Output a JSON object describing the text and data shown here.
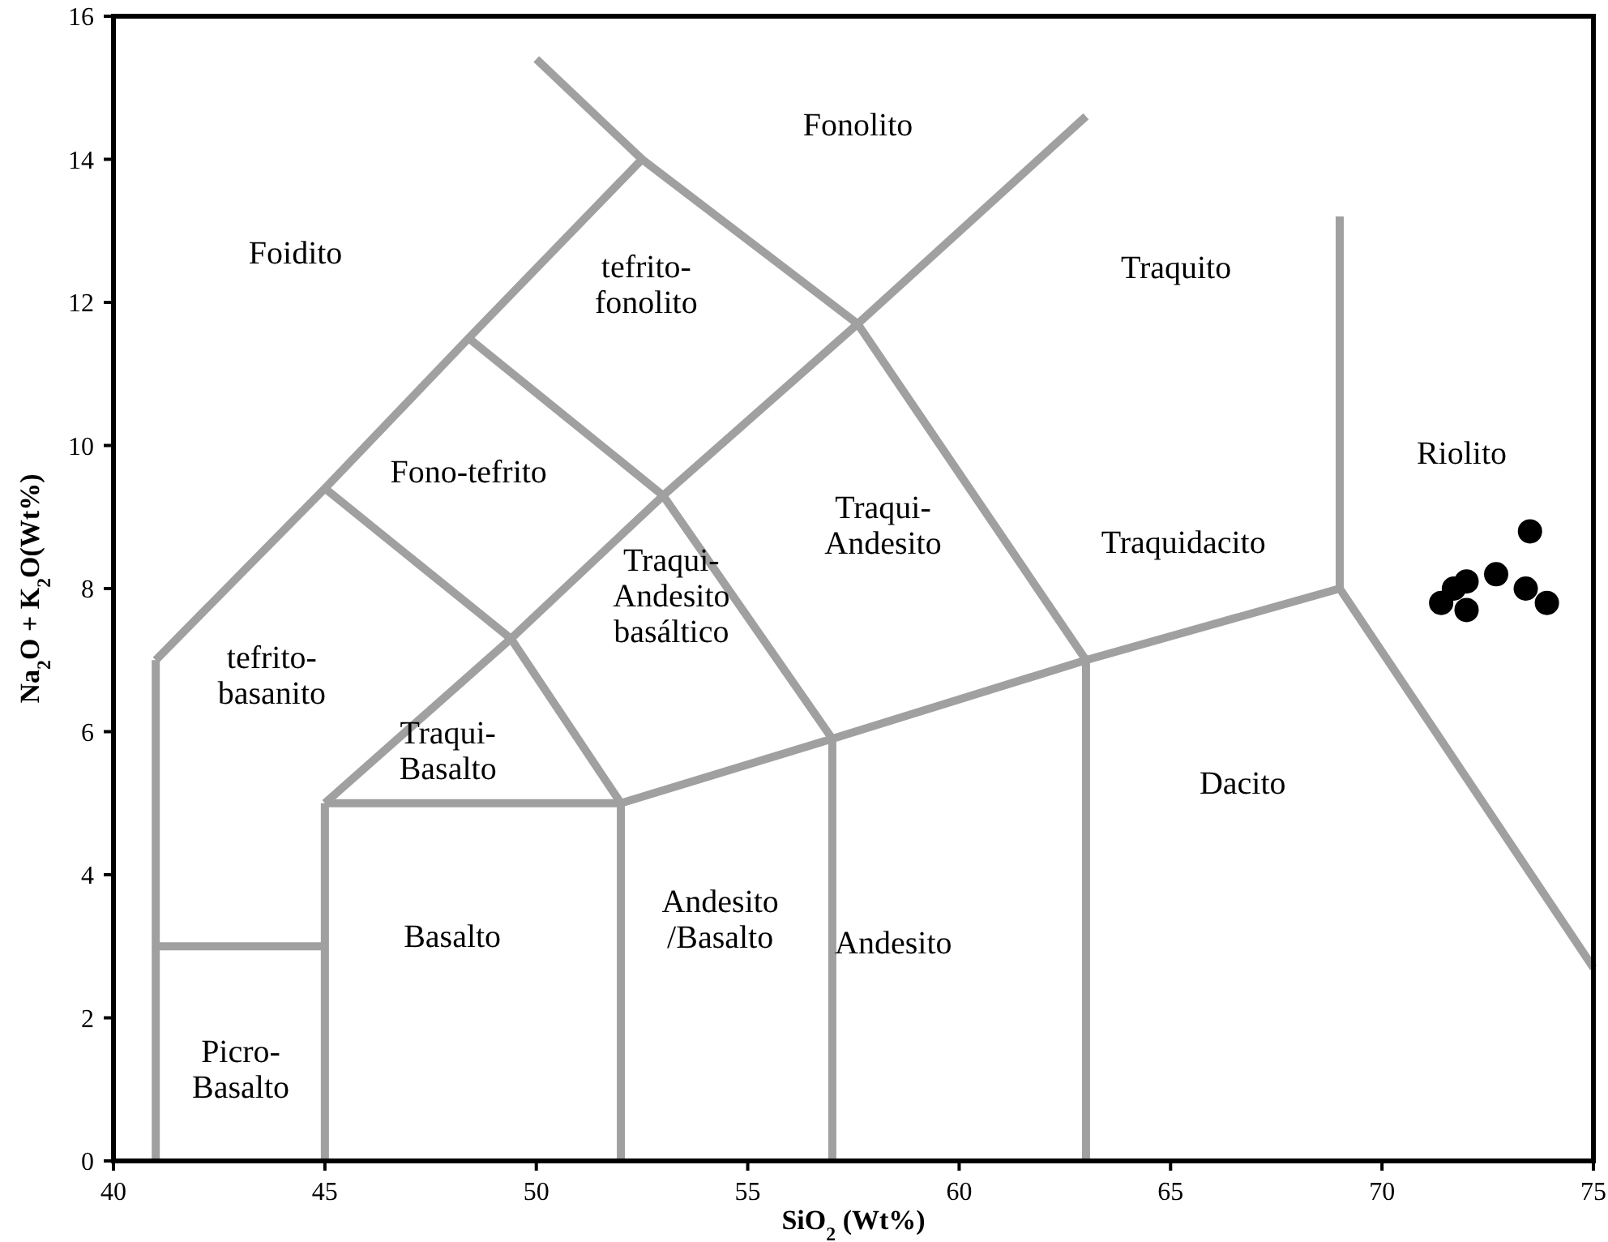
{
  "chart_data": {
    "type": "scatter",
    "xlabel": "SiO$_{2}$ (Wt%)",
    "ylabel": "Na$_{2}$O + K$_{2}$O(Wt%)",
    "xlim": [
      40,
      75
    ],
    "ylim": [
      0,
      16
    ],
    "xticks": [
      40,
      45,
      50,
      55,
      60,
      65,
      70,
      75
    ],
    "yticks": [
      0,
      2,
      4,
      6,
      8,
      10,
      12,
      14,
      16
    ],
    "grid": false,
    "series": [
      {
        "type": "line",
        "color": "#a0a0a0",
        "x": [
          41,
          41
        ],
        "values": [
          0,
          7
        ]
      },
      {
        "type": "line",
        "color": "#a0a0a0",
        "x": [
          41,
          45
        ],
        "values": [
          3,
          3
        ]
      },
      {
        "type": "line",
        "color": "#a0a0a0",
        "x": [
          45,
          45
        ],
        "values": [
          0,
          5
        ]
      },
      {
        "type": "line",
        "color": "#a0a0a0",
        "x": [
          52,
          52
        ],
        "values": [
          0,
          5
        ]
      },
      {
        "type": "line",
        "color": "#a0a0a0",
        "x": [
          41,
          45,
          48.4,
          52.5,
          57.6,
          63
        ],
        "values": [
          7,
          9.4,
          11.5,
          14,
          11.7,
          7
        ]
      },
      {
        "type": "line",
        "color": "#a0a0a0",
        "x": [
          52.5,
          50
        ],
        "values": [
          14,
          15.4
        ]
      },
      {
        "type": "line",
        "color": "#a0a0a0",
        "x": [
          45,
          49.4,
          52
        ],
        "values": [
          9.4,
          7.3,
          5
        ]
      },
      {
        "type": "line",
        "color": "#a0a0a0",
        "x": [
          45,
          49.4,
          53,
          57.6,
          63
        ],
        "values": [
          5,
          7.3,
          9.3,
          11.7,
          14.6
        ]
      },
      {
        "type": "line",
        "color": "#a0a0a0",
        "x": [
          48.4,
          53,
          57
        ],
        "values": [
          11.5,
          9.3,
          5.9
        ]
      },
      {
        "type": "line",
        "color": "#a0a0a0",
        "x": [
          45,
          52,
          57,
          63,
          69
        ],
        "values": [
          5,
          5,
          5.9,
          7,
          8
        ]
      },
      {
        "type": "line",
        "color": "#a0a0a0",
        "x": [
          57,
          57
        ],
        "values": [
          0,
          5.9
        ]
      },
      {
        "type": "line",
        "color": "#a0a0a0",
        "x": [
          63,
          63
        ],
        "values": [
          0,
          7
        ]
      },
      {
        "type": "line",
        "color": "#a0a0a0",
        "x": [
          69,
          69
        ],
        "values": [
          8,
          13.2
        ]
      },
      {
        "type": "line",
        "color": "#a0a0a0",
        "x": [
          69,
          75
        ],
        "values": [
          8,
          2.7
        ]
      },
      {
        "color": "#000000",
        "marker": "circle",
        "x": [
          73.5,
          72.7,
          72.0,
          71.7,
          71.4,
          72.0,
          73.4,
          73.9
        ],
        "values": [
          8.8,
          8.2,
          8.1,
          8.0,
          7.8,
          7.7,
          8.0,
          7.8
        ]
      }
    ],
    "annotations": [
      "Fonolito",
      "Foidito",
      "tefrito-\nfonolito",
      "Traquito",
      "Fono-tefrito",
      "Traqui-\nAndesito",
      "Riolito",
      "Traquidacito",
      "tefrito-\nbasanito",
      "Traqui-\nAndesito\nbasáltico",
      "Traqui-\nBasalto",
      "Dacito",
      "Basalto",
      "Andesito\n/Basalto",
      "Andesito",
      "Picro-\nBasalto"
    ]
  }
}
